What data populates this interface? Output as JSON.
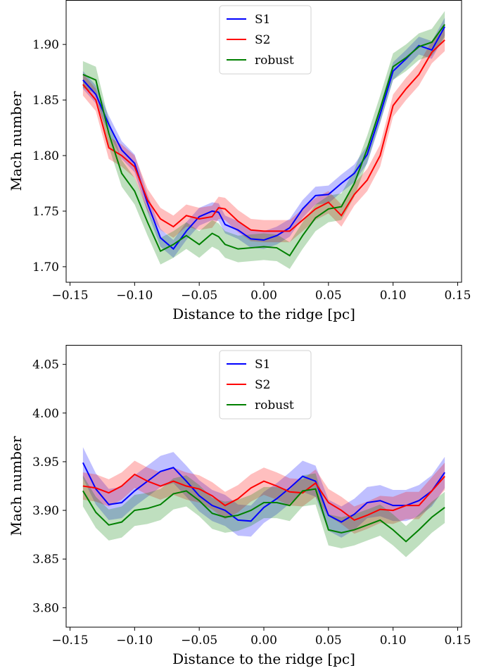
{
  "chart_data": [
    {
      "type": "line",
      "xlabel": "Distance to the ridge [pc]",
      "ylabel": "Mach number",
      "xlim": [
        -0.153,
        0.153
      ],
      "ylim": [
        1.686,
        1.94
      ],
      "xticks": [
        "−0.15",
        "−0.10",
        "−0.05",
        "0.00",
        "0.05",
        "0.10",
        "0.15"
      ],
      "xtick_values": [
        -0.15,
        -0.1,
        -0.05,
        0.0,
        0.05,
        0.1,
        0.15
      ],
      "yticks": [
        "1.70",
        "1.75",
        "1.80",
        "1.85",
        "1.90"
      ],
      "ytick_values": [
        1.7,
        1.75,
        1.8,
        1.85,
        1.9
      ],
      "legend_position": "upper center",
      "grid": false,
      "x": [
        -0.14,
        -0.13,
        -0.12,
        -0.11,
        -0.1,
        -0.09,
        -0.08,
        -0.07,
        -0.06,
        -0.05,
        -0.04,
        -0.035,
        -0.03,
        -0.02,
        -0.01,
        0.0,
        0.01,
        0.02,
        0.03,
        0.04,
        0.05,
        0.06,
        0.07,
        0.08,
        0.09,
        0.1,
        0.11,
        0.12,
        0.13,
        0.14
      ],
      "series": [
        {
          "name": "S1",
          "color": "#0000ff",
          "values": [
            1.868,
            1.855,
            1.828,
            1.805,
            1.793,
            1.757,
            1.726,
            1.716,
            1.732,
            1.745,
            1.75,
            1.749,
            1.738,
            1.733,
            1.725,
            1.724,
            1.728,
            1.735,
            1.752,
            1.764,
            1.765,
            1.775,
            1.784,
            1.801,
            1.837,
            1.876,
            1.887,
            1.899,
            1.895,
            1.916
          ],
          "band_half_width": 0.008
        },
        {
          "name": "S2",
          "color": "#ff0000",
          "values": [
            1.864,
            1.85,
            1.807,
            1.8,
            1.79,
            1.76,
            1.743,
            1.736,
            1.746,
            1.743,
            1.745,
            1.753,
            1.752,
            1.741,
            1.733,
            1.732,
            1.732,
            1.732,
            1.742,
            1.752,
            1.758,
            1.746,
            1.765,
            1.778,
            1.8,
            1.845,
            1.86,
            1.873,
            1.893,
            1.904
          ],
          "band_half_width": 0.01
        },
        {
          "name": "robust",
          "color": "#008000",
          "values": [
            1.873,
            1.868,
            1.82,
            1.784,
            1.768,
            1.74,
            1.714,
            1.72,
            1.728,
            1.72,
            1.73,
            1.727,
            1.72,
            1.716,
            1.717,
            1.718,
            1.717,
            1.71,
            1.728,
            1.744,
            1.752,
            1.754,
            1.775,
            1.806,
            1.842,
            1.88,
            1.888,
            1.898,
            1.902,
            1.918
          ],
          "band_half_width": 0.012
        }
      ]
    },
    {
      "type": "line",
      "xlabel": "Distance to the ridge [pc]",
      "ylabel": "Mach number",
      "xlim": [
        -0.153,
        0.153
      ],
      "ylim": [
        3.78,
        4.07
      ],
      "xticks": [
        "−0.15",
        "−0.10",
        "−0.05",
        "0.00",
        "0.05",
        "0.10",
        "0.15"
      ],
      "xtick_values": [
        -0.15,
        -0.1,
        -0.05,
        0.0,
        0.05,
        0.1,
        0.15
      ],
      "yticks": [
        "3.80",
        "3.85",
        "3.90",
        "3.95",
        "4.00",
        "4.05"
      ],
      "ytick_values": [
        3.8,
        3.85,
        3.9,
        3.95,
        4.0,
        4.05
      ],
      "legend_position": "upper center",
      "grid": false,
      "x": [
        -0.14,
        -0.13,
        -0.12,
        -0.11,
        -0.1,
        -0.09,
        -0.08,
        -0.07,
        -0.06,
        -0.05,
        -0.04,
        -0.03,
        -0.02,
        -0.01,
        0.0,
        0.01,
        0.02,
        0.03,
        0.04,
        0.05,
        0.06,
        0.07,
        0.08,
        0.09,
        0.1,
        0.11,
        0.12,
        0.13,
        0.14
      ],
      "series": [
        {
          "name": "S1",
          "color": "#0000ff",
          "values": [
            3.949,
            3.922,
            3.906,
            3.908,
            3.92,
            3.93,
            3.94,
            3.944,
            3.93,
            3.915,
            3.905,
            3.9,
            3.89,
            3.889,
            3.903,
            3.912,
            3.923,
            3.935,
            3.93,
            3.895,
            3.888,
            3.896,
            3.908,
            3.91,
            3.905,
            3.905,
            3.91,
            3.92,
            3.939
          ],
          "band_half_width": 0.016
        },
        {
          "name": "S2",
          "color": "#ff0000",
          "values": [
            3.925,
            3.923,
            3.918,
            3.925,
            3.937,
            3.93,
            3.925,
            3.93,
            3.925,
            3.922,
            3.915,
            3.905,
            3.912,
            3.923,
            3.93,
            3.925,
            3.919,
            3.918,
            3.928,
            3.908,
            3.9,
            3.89,
            3.895,
            3.901,
            3.9,
            3.905,
            3.905,
            3.92,
            3.935
          ],
          "band_half_width": 0.014
        },
        {
          "name": "robust",
          "color": "#008000",
          "values": [
            3.92,
            3.898,
            3.885,
            3.888,
            3.9,
            3.902,
            3.906,
            3.917,
            3.92,
            3.91,
            3.897,
            3.893,
            3.895,
            3.9,
            3.908,
            3.908,
            3.905,
            3.92,
            3.922,
            3.88,
            3.877,
            3.88,
            3.885,
            3.89,
            3.88,
            3.868,
            3.88,
            3.893,
            3.903
          ],
          "band_half_width": 0.016
        }
      ]
    }
  ]
}
